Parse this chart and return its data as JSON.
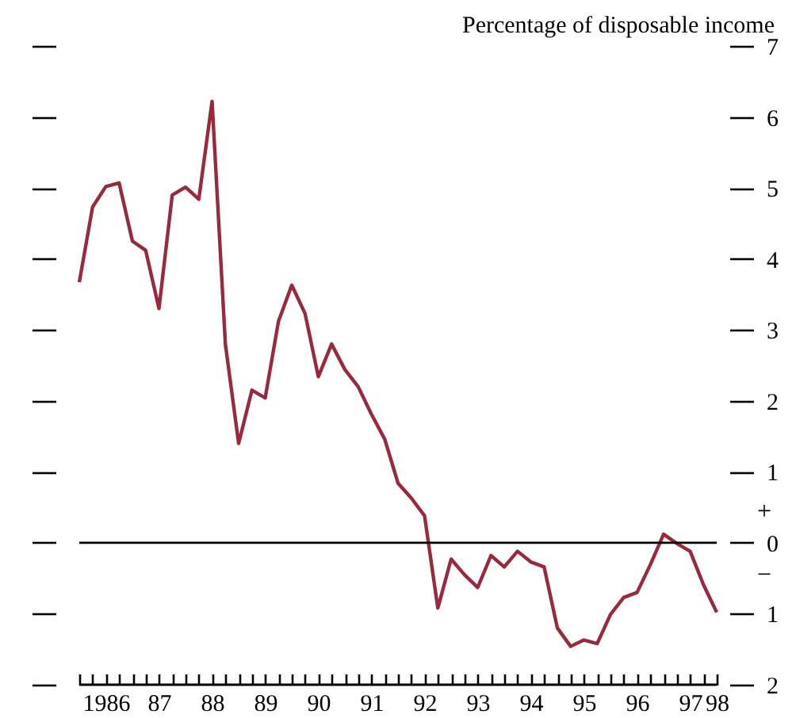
{
  "chart_data": {
    "type": "line",
    "ylabel": "Percentage of disposable income",
    "categories": [
      null,
      null,
      "1986",
      null,
      null,
      null,
      "87",
      null,
      null,
      null,
      "88",
      null,
      null,
      null,
      "89",
      null,
      null,
      null,
      "90",
      null,
      null,
      null,
      "91",
      null,
      null,
      null,
      "92",
      null,
      null,
      null,
      "93",
      null,
      null,
      null,
      "94",
      null,
      null,
      null,
      "95",
      null,
      null,
      null,
      "96",
      null,
      null,
      null,
      "97",
      null,
      "98"
    ],
    "series": [
      {
        "color": "#992a3d",
        "values": [
          3.67,
          4.73,
          5.02,
          5.07,
          4.25,
          4.12,
          3.3,
          4.9,
          5.01,
          4.84,
          6.22,
          2.8,
          1.4,
          2.15,
          2.04,
          3.12,
          3.63,
          3.23,
          2.34,
          2.8,
          2.44,
          2.2,
          1.81,
          1.46,
          0.84,
          0.63,
          0.38,
          -0.92,
          -0.23,
          -0.45,
          -0.63,
          -0.18,
          -0.34,
          -0.12,
          -0.27,
          -0.34,
          -1.2,
          -1.46,
          -1.37,
          -1.42,
          -1.01,
          -0.77,
          -0.7,
          -0.31,
          0.12,
          -0.01,
          -0.12,
          -0.59,
          -0.98
        ]
      }
    ],
    "ylim": [
      -2,
      7
    ],
    "yticks": [
      {
        "value": -2,
        "label": "2"
      },
      {
        "value": -1,
        "label": "1"
      },
      0,
      1,
      2,
      3,
      4,
      5,
      6,
      7
    ],
    "ref_lines": [
      {
        "axis": "y",
        "value": 0,
        "color": "#000000"
      }
    ],
    "annotations": [
      "+",
      "−"
    ],
    "grid": false,
    "legend": false
  }
}
